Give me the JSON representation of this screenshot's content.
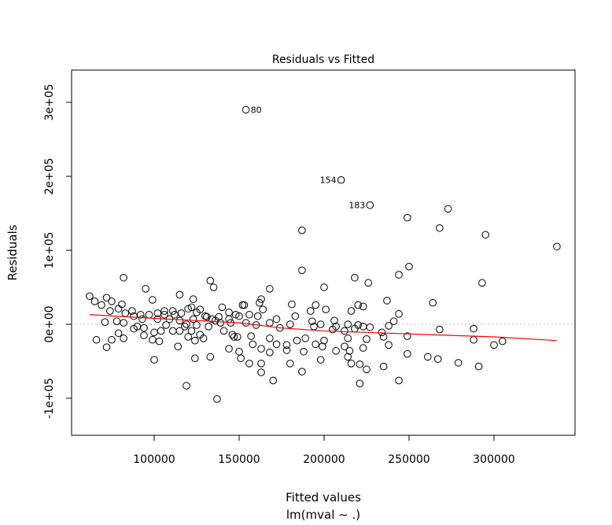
{
  "chart_data": {
    "type": "scatter",
    "title": "Residuals vs Fitted",
    "xlabel": "Fitted values",
    "subtitle": "lm(mval ~ .)",
    "ylabel": "Residuals",
    "units_scale": 1000,
    "xlim": [
      51389,
      347685
    ],
    "ylim": [
      -150000,
      343600
    ],
    "x_ticks": [
      {
        "v": 100000,
        "label": "100000"
      },
      {
        "v": 150000,
        "label": "150000"
      },
      {
        "v": 200000,
        "label": "200000"
      },
      {
        "v": 250000,
        "label": "250000"
      },
      {
        "v": 300000,
        "label": "300000"
      }
    ],
    "y_ticks": [
      {
        "v": -100000,
        "label": "-1e+05"
      },
      {
        "v": 0,
        "label": "0e+00"
      },
      {
        "v": 100000,
        "label": "1e+05"
      },
      {
        "v": 200000,
        "label": "2e+05"
      },
      {
        "v": 300000,
        "label": "3e+05"
      }
    ],
    "reference_line": 0,
    "labeled_points": [
      {
        "x": 154,
        "y": 290,
        "label": "80",
        "side": "right"
      },
      {
        "x": 210,
        "y": 195,
        "label": "154",
        "side": "left"
      },
      {
        "x": 227,
        "y": 161,
        "label": "183",
        "side": "left"
      }
    ],
    "points": [
      [
        62,
        38
      ],
      [
        82,
        63
      ],
      [
        72,
        36
      ],
      [
        69,
        26
      ],
      [
        75,
        31
      ],
      [
        81,
        27
      ],
      [
        71,
        3
      ],
      [
        66,
        -21
      ],
      [
        72,
        -31
      ],
      [
        75,
        -21
      ],
      [
        79,
        -12
      ],
      [
        82,
        -19
      ],
      [
        78,
        4
      ],
      [
        82,
        2
      ],
      [
        87,
        18
      ],
      [
        95,
        48
      ],
      [
        99,
        33
      ],
      [
        92,
        13
      ],
      [
        94,
        -5
      ],
      [
        88,
        -6
      ],
      [
        100,
        -11
      ],
      [
        94,
        -15
      ],
      [
        100,
        -48
      ],
      [
        103,
        -23
      ],
      [
        99,
        -21
      ],
      [
        115,
        40
      ],
      [
        106,
        18
      ],
      [
        112,
        13
      ],
      [
        115,
        -9
      ],
      [
        114,
        -30
      ],
      [
        119,
        -83
      ],
      [
        124,
        -46
      ],
      [
        123,
        34
      ],
      [
        122,
        23
      ],
      [
        127,
        20
      ],
      [
        120,
        -17
      ],
      [
        124,
        -22
      ],
      [
        129,
        -19
      ],
      [
        133,
        -44
      ],
      [
        133,
        59
      ],
      [
        135,
        50
      ],
      [
        137,
        -101
      ],
      [
        140,
        23
      ],
      [
        144,
        16
      ],
      [
        136,
        5
      ],
      [
        145,
        2
      ],
      [
        147,
        -17
      ],
      [
        150,
        -37
      ],
      [
        144,
        -33
      ],
      [
        152,
        26
      ],
      [
        150,
        11
      ],
      [
        107,
        -1
      ],
      [
        119,
        0
      ],
      [
        125,
        -1
      ],
      [
        131,
        10
      ],
      [
        138,
        10
      ],
      [
        102,
        15
      ],
      [
        111,
        -9
      ],
      [
        115,
        5
      ],
      [
        122,
        -9
      ],
      [
        187,
        73
      ],
      [
        168,
        48
      ],
      [
        200,
        50
      ],
      [
        218,
        63
      ],
      [
        226,
        56
      ],
      [
        244,
        67
      ],
      [
        237,
        32
      ],
      [
        153,
        26
      ],
      [
        163,
        34
      ],
      [
        162,
        29
      ],
      [
        164,
        20
      ],
      [
        181,
        27
      ],
      [
        183,
        11
      ],
      [
        192,
        18
      ],
      [
        195,
        26
      ],
      [
        201,
        20
      ],
      [
        216,
        18
      ],
      [
        220,
        26
      ],
      [
        223,
        24
      ],
      [
        244,
        14
      ],
      [
        241,
        4
      ],
      [
        156,
        13
      ],
      [
        154,
        2
      ],
      [
        161,
        11
      ],
      [
        160,
        -1
      ],
      [
        168,
        2
      ],
      [
        172,
        7
      ],
      [
        174,
        -5
      ],
      [
        180,
        0
      ],
      [
        193,
        4
      ],
      [
        198,
        0
      ],
      [
        194,
        -3
      ],
      [
        206,
        5
      ],
      [
        207,
        -3
      ],
      [
        205,
        -7
      ],
      [
        212,
        -9
      ],
      [
        214,
        0
      ],
      [
        220,
        -1
      ],
      [
        218,
        -6
      ],
      [
        223,
        -3
      ],
      [
        227,
        -4
      ],
      [
        234,
        -11
      ],
      [
        235,
        -17
      ],
      [
        238,
        -2
      ],
      [
        249,
        -16
      ],
      [
        157,
        -16
      ],
      [
        158,
        -27
      ],
      [
        163,
        -33
      ],
      [
        168,
        -38
      ],
      [
        168,
        -19
      ],
      [
        172,
        -27
      ],
      [
        178,
        -28
      ],
      [
        178,
        -35
      ],
      [
        184,
        -22
      ],
      [
        189,
        -19
      ],
      [
        195,
        -27
      ],
      [
        199,
        -30
      ],
      [
        200,
        -22
      ],
      [
        188,
        -37
      ],
      [
        198,
        -48
      ],
      [
        207,
        -36
      ],
      [
        212,
        -30
      ],
      [
        214,
        -19
      ],
      [
        215,
        -36
      ],
      [
        214,
        -44
      ],
      [
        216,
        -53
      ],
      [
        221,
        -54
      ],
      [
        225,
        -20
      ],
      [
        223,
        -32
      ],
      [
        225,
        -61
      ],
      [
        238,
        -28
      ],
      [
        235,
        -57
      ],
      [
        221,
        -80
      ],
      [
        244,
        -76
      ],
      [
        249,
        -40
      ],
      [
        156,
        -53
      ],
      [
        163,
        -65
      ],
      [
        163,
        -53
      ],
      [
        170,
        -76
      ],
      [
        180,
        -53
      ],
      [
        187,
        -64
      ],
      [
        151,
        -46
      ],
      [
        149,
        -17
      ],
      [
        154,
        290
      ],
      [
        210,
        195
      ],
      [
        227,
        161
      ],
      [
        187,
        127
      ],
      [
        249,
        144
      ],
      [
        273,
        156
      ],
      [
        268,
        130
      ],
      [
        295,
        121
      ],
      [
        337,
        105
      ],
      [
        293,
        56
      ],
      [
        250,
        78
      ],
      [
        264,
        29
      ],
      [
        268,
        -7
      ],
      [
        261,
        -44
      ],
      [
        267,
        -47
      ],
      [
        279,
        -52
      ],
      [
        288,
        -6
      ],
      [
        288,
        -21
      ],
      [
        291,
        -57
      ],
      [
        300,
        -28
      ],
      [
        305,
        -23
      ],
      [
        65,
        31
      ],
      [
        74,
        18
      ],
      [
        79,
        21
      ],
      [
        83,
        15
      ],
      [
        88,
        11
      ],
      [
        93,
        7
      ],
      [
        97,
        13
      ],
      [
        102,
        7
      ],
      [
        106,
        13
      ],
      [
        111,
        18
      ],
      [
        116,
        15
      ],
      [
        120,
        21
      ],
      [
        125,
        16
      ],
      [
        130,
        11
      ],
      [
        134,
        7
      ],
      [
        139,
        2
      ],
      [
        144,
        7
      ],
      [
        148,
        13
      ],
      [
        90,
        -3
      ],
      [
        104,
        -9
      ],
      [
        123,
        7
      ],
      [
        127,
        -14
      ],
      [
        132,
        -3
      ],
      [
        141,
        -9
      ],
      [
        146,
        -14
      ],
      [
        118,
        -3
      ],
      [
        109,
        7
      ]
    ],
    "smooth_line": [
      [
        62,
        13
      ],
      [
        100,
        8
      ],
      [
        150,
        2
      ],
      [
        175,
        -5
      ],
      [
        200,
        -9
      ],
      [
        250,
        -13
      ],
      [
        300,
        -17
      ],
      [
        337,
        -22
      ]
    ],
    "colors": {
      "points": "#000000",
      "smooth": "#ff0000",
      "reference": "#bbbbbb"
    }
  }
}
